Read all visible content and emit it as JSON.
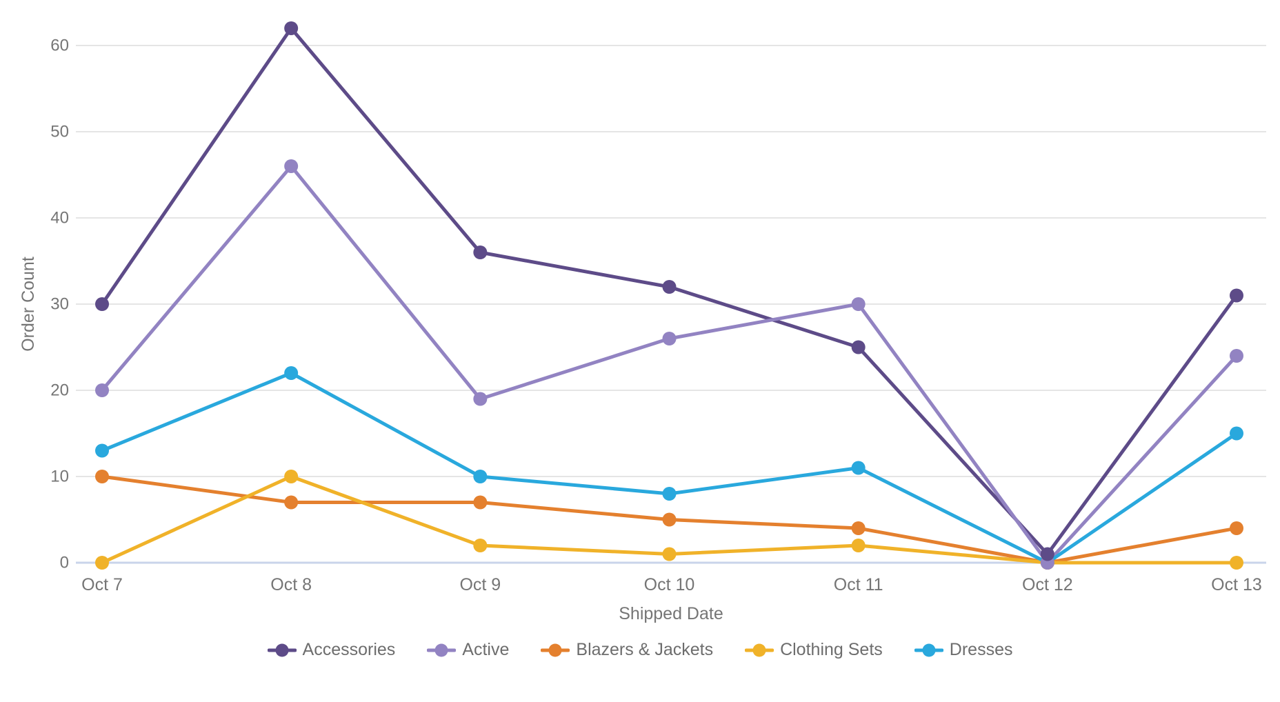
{
  "chart_data": {
    "type": "line",
    "title": "",
    "xlabel": "Shipped Date",
    "ylabel": "Order Count",
    "categories": [
      "Oct 7",
      "Oct 8",
      "Oct 9",
      "Oct 10",
      "Oct 11",
      "Oct 12",
      "Oct 13"
    ],
    "series": [
      {
        "name": "Accessories",
        "color": "#5D4B88",
        "values": [
          30,
          62,
          36,
          32,
          25,
          1,
          31
        ]
      },
      {
        "name": "Active",
        "color": "#9283C2",
        "values": [
          20,
          46,
          19,
          26,
          30,
          0,
          24
        ]
      },
      {
        "name": "Blazers & Jackets",
        "color": "#E4802E",
        "values": [
          10,
          7,
          7,
          5,
          4,
          0,
          4
        ]
      },
      {
        "name": "Clothing Sets",
        "color": "#F0B229",
        "values": [
          0,
          10,
          2,
          1,
          2,
          0,
          0
        ]
      },
      {
        "name": "Dresses",
        "color": "#29A8DD",
        "values": [
          13,
          22,
          10,
          8,
          11,
          0,
          15
        ]
      }
    ],
    "y_ticks": [
      0,
      10,
      20,
      30,
      40,
      50,
      60
    ],
    "ylim": [
      0,
      65
    ],
    "grid": true,
    "legend_position": "bottom",
    "axis_text_color": "#757575",
    "gridline_color": "#E5E5E5",
    "zero_line_color": "#C9D4EA"
  }
}
